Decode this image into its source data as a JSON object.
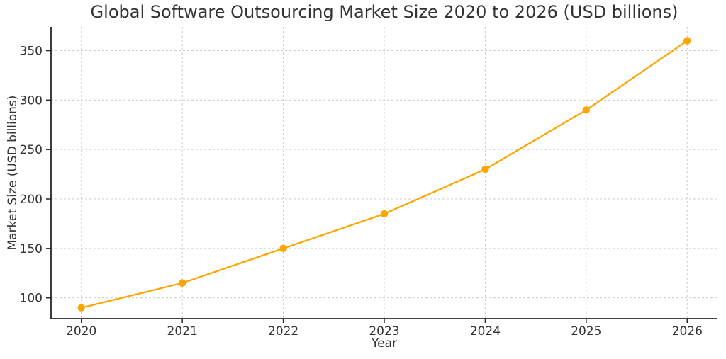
{
  "chart_data": {
    "type": "line",
    "title": "Global Software Outsourcing Market Size 2020 to 2026 (USD billions)",
    "xlabel": "Year",
    "ylabel": "Market Size (USD billions)",
    "x": [
      2020,
      2021,
      2022,
      2023,
      2024,
      2025,
      2026
    ],
    "series": [
      {
        "name": "Market Size (USD billions)",
        "values": [
          90,
          115,
          150,
          185,
          230,
          290,
          360
        ]
      }
    ],
    "xticks": [
      2020,
      2021,
      2022,
      2023,
      2024,
      2025,
      2026
    ],
    "yticks": [
      100,
      150,
      200,
      250,
      300,
      350
    ],
    "xlim": [
      2019.7,
      2026.3
    ],
    "ylim": [
      79,
      374
    ],
    "grid": true,
    "grid_style": "dashed",
    "legend": false,
    "marker": "circle",
    "colors": {
      "line": "#FFA500",
      "marker": "#FFA500",
      "grid": "#cccccc",
      "spine": "#262626",
      "text": "#333333",
      "background": "#ffffff"
    }
  }
}
